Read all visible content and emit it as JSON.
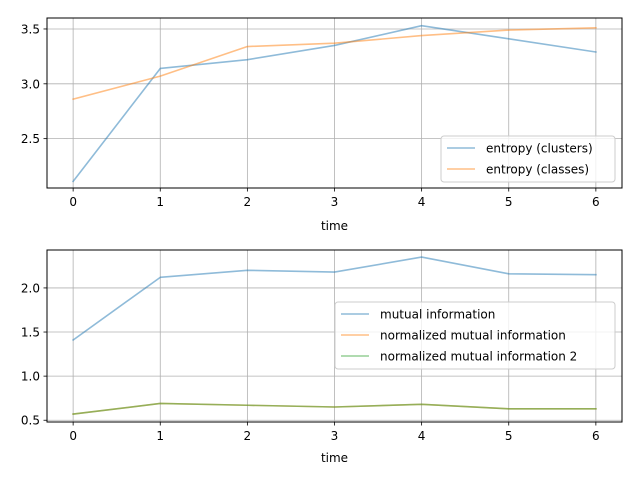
{
  "chart_data": [
    {
      "type": "line",
      "title": "",
      "xlabel": "time",
      "ylabel": "",
      "xlim": [
        -0.3,
        6.3
      ],
      "ylim": [
        2.05,
        3.6
      ],
      "xticks": [
        0,
        1,
        2,
        3,
        4,
        5,
        6
      ],
      "yticks": [
        2.5,
        3.0,
        3.5
      ],
      "xtick_labels": [
        "0",
        "1",
        "2",
        "3",
        "4",
        "5",
        "6"
      ],
      "ytick_labels": [
        "2.5",
        "3.0",
        "3.5"
      ],
      "grid": true,
      "legend_position": "lower-right",
      "x": [
        0,
        1,
        2,
        3,
        4,
        5,
        6
      ],
      "series": [
        {
          "name": "entropy (clusters)",
          "color": "#1f77b4",
          "alpha": 0.5,
          "values": [
            2.11,
            3.14,
            3.22,
            3.35,
            3.53,
            3.41,
            3.29
          ]
        },
        {
          "name": "entropy (classes)",
          "color": "#ff7f0e",
          "alpha": 0.5,
          "values": [
            2.86,
            3.07,
            3.34,
            3.37,
            3.44,
            3.49,
            3.51
          ]
        }
      ]
    },
    {
      "type": "line",
      "title": "",
      "xlabel": "time",
      "ylabel": "",
      "xlim": [
        -0.3,
        6.3
      ],
      "ylim": [
        0.48,
        2.43
      ],
      "xticks": [
        0,
        1,
        2,
        3,
        4,
        5,
        6
      ],
      "yticks": [
        0.5,
        1.0,
        1.5,
        2.0
      ],
      "xtick_labels": [
        "0",
        "1",
        "2",
        "3",
        "4",
        "5",
        "6"
      ],
      "ytick_labels": [
        "0.5",
        "1.0",
        "1.5",
        "2.0"
      ],
      "grid": true,
      "legend_position": "center-right",
      "x": [
        0,
        1,
        2,
        3,
        4,
        5,
        6
      ],
      "series": [
        {
          "name": "mutual information",
          "color": "#1f77b4",
          "alpha": 0.5,
          "values": [
            1.41,
            2.12,
            2.2,
            2.18,
            2.35,
            2.16,
            2.15
          ]
        },
        {
          "name": "normalized mutual information",
          "color": "#ff7f0e",
          "alpha": 0.5,
          "values": [
            0.57,
            0.69,
            0.67,
            0.65,
            0.68,
            0.63,
            0.63
          ]
        },
        {
          "name": "normalized mutual information 2",
          "color": "#2ca02c",
          "alpha": 0.5,
          "values": [
            0.57,
            0.69,
            0.67,
            0.65,
            0.68,
            0.63,
            0.63
          ]
        }
      ]
    }
  ]
}
